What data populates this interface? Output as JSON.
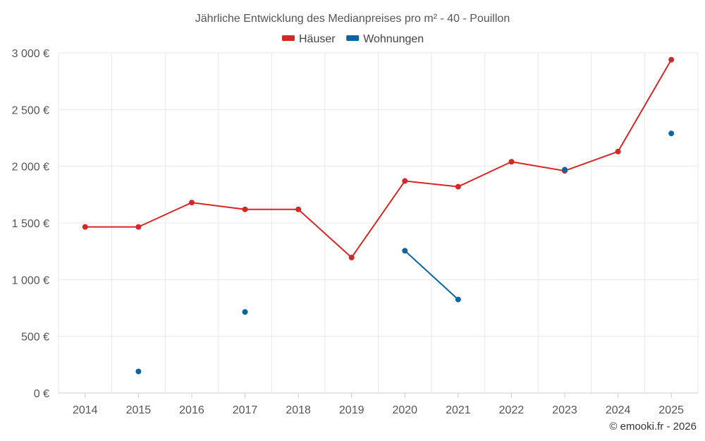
{
  "chart_data": {
    "type": "line",
    "title": "Jährliche Entwicklung des Medianpreises pro m² - 40 - Pouillon",
    "categories": [
      "2014",
      "2015",
      "2016",
      "2017",
      "2018",
      "2019",
      "2020",
      "2021",
      "2022",
      "2023",
      "2024",
      "2025"
    ],
    "series": [
      {
        "name": "Häuser",
        "color": "#d62728",
        "values": [
          1465,
          1465,
          1680,
          1620,
          1620,
          1195,
          1870,
          1820,
          2040,
          1960,
          2130,
          2940
        ]
      },
      {
        "name": "Wohnungen",
        "color": "#0a66a0",
        "values": [
          null,
          190,
          null,
          715,
          null,
          null,
          1255,
          825,
          null,
          1970,
          null,
          2290
        ]
      }
    ],
    "y_ticks": [
      0,
      500,
      1000,
      1500,
      2000,
      2500,
      3000
    ],
    "y_tick_labels": [
      "0 €",
      "500 €",
      "1 000 €",
      "1 500 €",
      "2 000 €",
      "2 500 €",
      "3 000 €"
    ],
    "ylim": [
      0,
      3000
    ],
    "xlabel": "",
    "ylabel": "",
    "legend_position": "top-center",
    "grid": true
  },
  "credit": "© emooki.fr - 2026"
}
